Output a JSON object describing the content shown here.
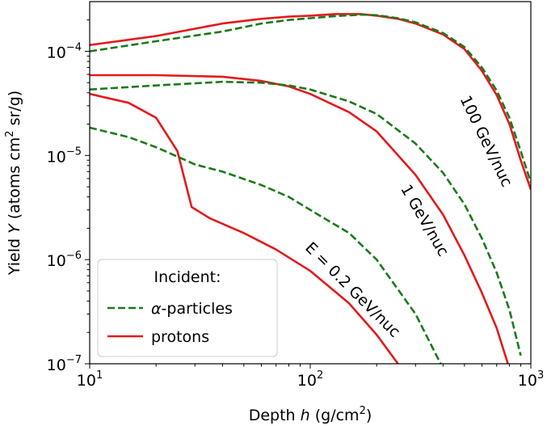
{
  "chart_data": {
    "type": "line",
    "title": "",
    "xlabel_prefix": "Depth ",
    "xlabel_var": "h",
    "xlabel_suffix": " (g/cm",
    "xlabel_sup": "2",
    "xlabel_end": ")",
    "ylabel_prefix": "Yield ",
    "ylabel_var": "Y",
    "ylabel_suffix": " (atoms cm",
    "ylabel_sup": "2",
    "ylabel_end": " sr/g)",
    "x_scale": "log",
    "y_scale": "log",
    "xlim": [
      10,
      1000
    ],
    "ylim": [
      1e-07,
      0.0003
    ],
    "grid": false,
    "x_ticks": [
      {
        "value": 10,
        "base": "10",
        "exp": "1"
      },
      {
        "value": 100,
        "base": "10",
        "exp": "2"
      },
      {
        "value": 1000,
        "base": "10",
        "exp": "3"
      }
    ],
    "y_ticks": [
      {
        "value": 1e-07,
        "base": "10",
        "exp": "−7"
      },
      {
        "value": 1e-06,
        "base": "10",
        "exp": "−6"
      },
      {
        "value": 1e-05,
        "base": "10",
        "exp": "−5"
      },
      {
        "value": 0.0001,
        "base": "10",
        "exp": "−4"
      }
    ],
    "legend": {
      "title": "Incident:",
      "placement": "lower-left",
      "entries": [
        {
          "series": "alpha",
          "prefix": "α",
          "text": "-particles"
        },
        {
          "series": "protons",
          "prefix": "",
          "text": "protons"
        }
      ]
    },
    "colors": {
      "protons": "#e31a1c",
      "alpha": "#1a7a1a"
    },
    "series": [
      {
        "kind": "protons",
        "energy": "0.2",
        "x": [
          10,
          15,
          20,
          25,
          29,
          35,
          50,
          70,
          100,
          150,
          200,
          250
        ],
        "y": [
          3.9e-05,
          3.2e-05,
          2.3e-05,
          1.1e-05,
          3.2e-06,
          2.5e-06,
          1.8e-06,
          1.25e-06,
          7.8e-07,
          3.8e-07,
          1.9e-07,
          1e-07
        ]
      },
      {
        "kind": "alpha",
        "energy": "0.2",
        "x": [
          10,
          15,
          20,
          30,
          40,
          60,
          80,
          100,
          150,
          200,
          300,
          400
        ],
        "y": [
          1.85e-05,
          1.5e-05,
          1.2e-05,
          8.2e-06,
          7e-06,
          5.2e-06,
          4e-06,
          3e-06,
          1.8e-06,
          1e-06,
          3e-07,
          9e-08
        ]
      },
      {
        "kind": "protons",
        "energy": "1",
        "x": [
          10,
          20,
          40,
          60,
          80,
          100,
          150,
          200,
          300,
          400,
          500,
          600,
          700,
          800
        ],
        "y": [
          5.9e-05,
          5.9e-05,
          5.7e-05,
          5.2e-05,
          4.6e-05,
          3.9e-05,
          2.6e-05,
          1.7e-05,
          6.5e-06,
          2.7e-06,
          1.1e-06,
          4.8e-07,
          2.2e-07,
          9e-08
        ]
      },
      {
        "kind": "alpha",
        "energy": "1",
        "x": [
          10,
          20,
          40,
          60,
          80,
          100,
          150,
          200,
          300,
          400,
          500,
          600,
          700,
          800,
          900
        ],
        "y": [
          4.3e-05,
          4.7e-05,
          5.1e-05,
          5e-05,
          4.7e-05,
          4.3e-05,
          3.3e-05,
          2.5e-05,
          1.3e-05,
          6.8e-06,
          3.4e-06,
          1.6e-06,
          7.5e-07,
          3.3e-07,
          1.2e-07
        ]
      },
      {
        "kind": "protons",
        "energy": "100",
        "x": [
          10,
          20,
          40,
          60,
          80,
          100,
          130,
          170,
          200,
          250,
          300,
          400,
          500,
          600,
          700,
          800,
          900,
          1000
        ],
        "y": [
          0.000115,
          0.00014,
          0.000185,
          0.000205,
          0.000215,
          0.00022,
          0.000228,
          0.000228,
          0.00022,
          0.000205,
          0.000185,
          0.000145,
          0.000105,
          6.5e-05,
          3.8e-05,
          2e-05,
          9e-06,
          4.7e-06
        ]
      },
      {
        "kind": "alpha",
        "energy": "100",
        "x": [
          10,
          20,
          40,
          60,
          80,
          100,
          130,
          170,
          200,
          250,
          300,
          400,
          500,
          600,
          700,
          800,
          900,
          1000
        ],
        "y": [
          0.0001,
          0.000125,
          0.000155,
          0.000185,
          0.0002,
          0.000208,
          0.000218,
          0.000225,
          0.000222,
          0.000208,
          0.00019,
          0.00015,
          0.00011,
          7e-05,
          4.2e-05,
          2.3e-05,
          1.1e-05,
          5.5e-06
        ]
      }
    ],
    "annotations": [
      {
        "text": "E = 0.2 GeV/nuc",
        "angle_deg": 45
      },
      {
        "text": "1 GeV/nuc",
        "angle_deg": 60
      },
      {
        "text": "100 GeV/nuc",
        "angle_deg": 64
      }
    ]
  }
}
